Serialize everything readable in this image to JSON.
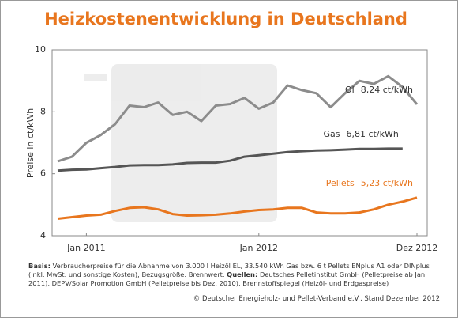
{
  "chart_data": {
    "type": "line",
    "title": "Heizkostenentwicklung in Deutschland",
    "y_label": "Preise in ct/kWh",
    "categories": [
      null,
      null,
      "Jan 2011",
      null,
      null,
      null,
      null,
      null,
      null,
      null,
      null,
      null,
      null,
      null,
      "Jan 2012",
      null,
      null,
      null,
      null,
      null,
      null,
      null,
      null,
      null,
      null,
      "Dez 2012"
    ],
    "ylim": [
      4,
      10
    ],
    "yticks": [
      4,
      6,
      8,
      10
    ],
    "grid": false,
    "series": [
      {
        "name": "Öl",
        "color": "#8c8c8c",
        "values": [
          6.4,
          6.55,
          7.0,
          7.25,
          7.6,
          8.2,
          8.15,
          8.3,
          7.9,
          8.0,
          7.7,
          8.2,
          8.25,
          8.45,
          8.1,
          8.3,
          8.85,
          8.7,
          8.6,
          8.15,
          8.6,
          9.0,
          8.9,
          9.15,
          8.8,
          8.24
        ]
      },
      {
        "name": "Gas",
        "color": "#555555",
        "values": [
          6.1,
          6.13,
          6.14,
          6.18,
          6.22,
          6.27,
          6.28,
          6.28,
          6.3,
          6.35,
          6.36,
          6.36,
          6.42,
          6.55,
          6.6,
          6.65,
          6.7,
          6.73,
          6.75,
          6.76,
          6.78,
          6.8,
          6.8,
          6.81,
          6.81,
          null
        ]
      },
      {
        "name": "Pellets",
        "color": "#e8761e",
        "values": [
          4.55,
          4.6,
          4.65,
          4.68,
          4.8,
          4.9,
          4.92,
          4.85,
          4.7,
          4.65,
          4.66,
          4.68,
          4.72,
          4.78,
          4.83,
          4.85,
          4.9,
          4.9,
          4.75,
          4.72,
          4.72,
          4.75,
          4.85,
          5.0,
          5.1,
          5.23
        ]
      }
    ],
    "annotations": [
      "8,24 ct/kWh",
      "6,81 ct/kWh",
      "5,23 ct/kWh"
    ],
    "basis_label": "Basis:",
    "basis_text": "Verbraucherpreise für die Abnahme von 3.000 l Heizöl EL, 33.540 kWh Gas bzw. 6 t Pellets ENplus A1 oder DINplus (inkl. MwSt. und sonstige Kosten), Bezugsgröße: Brennwert.",
    "sources_label": "Quellen:",
    "sources_text": "Deutsches Pelletinstitut GmbH (Pelletpreise ab Jan. 2011), DEPV/Solar Promotion GmbH (Pelletpreise bis Dez. 2010), Brennstoffspiegel (Heizöl- und Erdgaspreise)",
    "copyright": "© Deutscher Energieholz- und Pellet-Verband e.V., Stand Dezember 2012"
  }
}
